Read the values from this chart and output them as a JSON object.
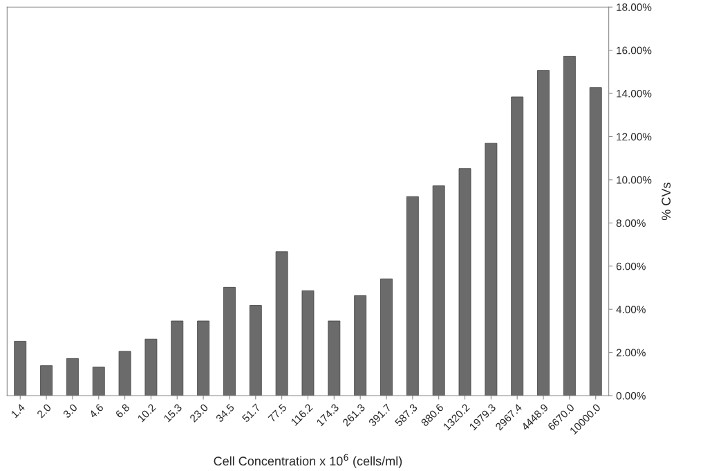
{
  "chart_data": {
    "type": "bar",
    "xlabel": "Cell Concentration x 10$^{6}$ (cells/ml)",
    "ylabel": "% CVs",
    "categories": [
      "1.4",
      "2.0",
      "3.0",
      "4.6",
      "6.8",
      "10.2",
      "15.3",
      "23.0",
      "34.5",
      "51.7",
      "77.5",
      "116.2",
      "174.3",
      "261.3",
      "391.7",
      "587.3",
      "880.6",
      "1320.2",
      "1979.3",
      "2967.4",
      "4448.9",
      "6670.0",
      "10000.0"
    ],
    "series": [
      {
        "color": "#6b6b6b",
        "values": [
          2.52,
          1.39,
          1.72,
          1.32,
          2.05,
          2.62,
          3.46,
          3.46,
          5.02,
          4.18,
          6.67,
          4.86,
          3.46,
          4.63,
          5.41,
          9.22,
          9.72,
          10.52,
          11.69,
          13.84,
          15.07,
          15.72,
          14.27
        ]
      }
    ],
    "ylim": [
      0,
      18
    ],
    "yticks": [
      {
        "value": 0,
        "label": "0.00%"
      },
      {
        "value": 2,
        "label": "2.00%"
      },
      {
        "value": 4,
        "label": "4.00%"
      },
      {
        "value": 6,
        "label": "6.00%"
      },
      {
        "value": 8,
        "label": "8.00%"
      },
      {
        "value": 10,
        "label": "10.00%"
      },
      {
        "value": 12,
        "label": "12.00%"
      },
      {
        "value": 14,
        "label": "14.00%"
      },
      {
        "value": 16,
        "label": "16.00%"
      },
      {
        "value": 18,
        "label": "18.00%"
      }
    ],
    "grid": false,
    "legend": false
  }
}
